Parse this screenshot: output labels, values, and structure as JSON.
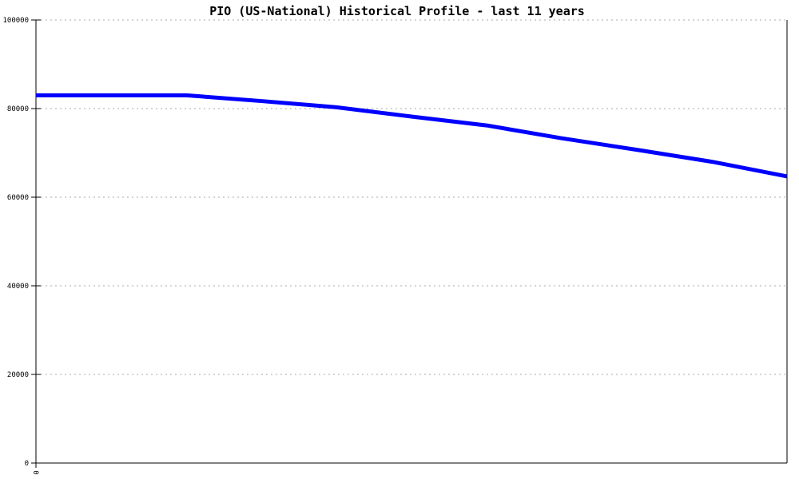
{
  "colors": {
    "line": "#0000ff",
    "grid": "#aaaaaa",
    "axis": "#000000",
    "text": "#000000",
    "background": "#ffffff"
  },
  "chart_data": {
    "type": "line",
    "title": "PIO (US-National) Historical Profile - last 11 years",
    "series_name": "PIO (US-National)",
    "x": [
      0,
      1,
      2,
      3,
      4,
      5,
      6,
      7,
      8,
      9,
      10
    ],
    "values": [
      83000,
      83000,
      83000,
      81700,
      80300,
      78200,
      76200,
      73300,
      70700,
      68000,
      64700
    ],
    "xlabel": "",
    "ylabel": "",
    "xlim": [
      0,
      10
    ],
    "ylim": [
      0,
      100000
    ],
    "yticks": [
      0,
      20000,
      40000,
      60000,
      80000,
      100000
    ],
    "ytick_labels": [
      "0",
      "20000",
      "40000",
      "60000",
      "80000",
      "100000"
    ],
    "xtick_labels": [
      "0"
    ],
    "grid": "horizontal-dashed",
    "legend": "none",
    "line_width": 5
  }
}
